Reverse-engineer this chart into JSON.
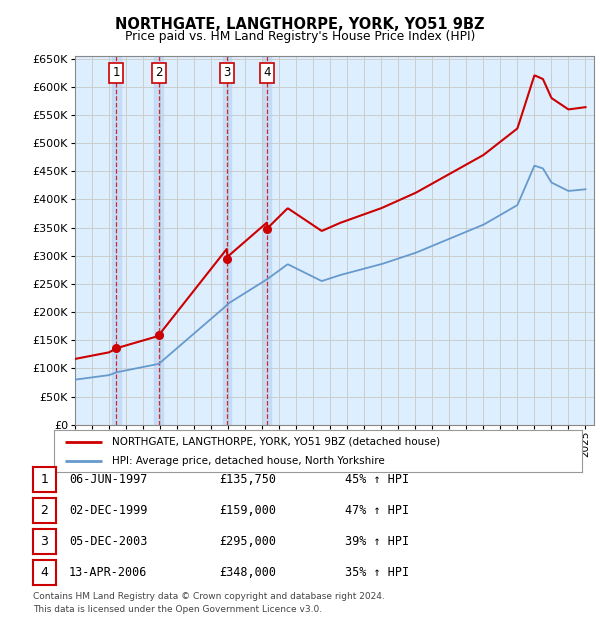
{
  "title": "NORTHGATE, LANGTHORPE, YORK, YO51 9BZ",
  "subtitle": "Price paid vs. HM Land Registry's House Price Index (HPI)",
  "ylim": [
    0,
    650000
  ],
  "yticks": [
    0,
    50000,
    100000,
    150000,
    200000,
    250000,
    300000,
    350000,
    400000,
    450000,
    500000,
    550000,
    600000,
    650000
  ],
  "xlim_start": 1995.0,
  "xlim_end": 2025.5,
  "sale_color": "#cc0000",
  "hpi_color": "#6699cc",
  "background_color": "#ffffff",
  "grid_color": "#cccccc",
  "plot_bg_color": "#ddeeff",
  "transactions": [
    {
      "id": 1,
      "date_decimal": 1997.43,
      "price": 135750
    },
    {
      "id": 2,
      "date_decimal": 1999.92,
      "price": 159000
    },
    {
      "id": 3,
      "date_decimal": 2003.92,
      "price": 295000
    },
    {
      "id": 4,
      "date_decimal": 2006.28,
      "price": 348000
    }
  ],
  "legend_line1": "NORTHGATE, LANGTHORPE, YORK, YO51 9BZ (detached house)",
  "legend_line2": "HPI: Average price, detached house, North Yorkshire",
  "footer1": "Contains HM Land Registry data © Crown copyright and database right 2024.",
  "footer2": "This data is licensed under the Open Government Licence v3.0.",
  "table_rows": [
    {
      "id": 1,
      "date": "06-JUN-1997",
      "price": "£135,750",
      "pct": "45% ↑ HPI"
    },
    {
      "id": 2,
      "date": "02-DEC-1999",
      "price": "£159,000",
      "pct": "47% ↑ HPI"
    },
    {
      "id": 3,
      "date": "05-DEC-2003",
      "price": "£295,000",
      "pct": "39% ↑ HPI"
    },
    {
      "id": 4,
      "date": "13-APR-2006",
      "price": "£348,000",
      "pct": "35% ↑ HPI"
    }
  ]
}
